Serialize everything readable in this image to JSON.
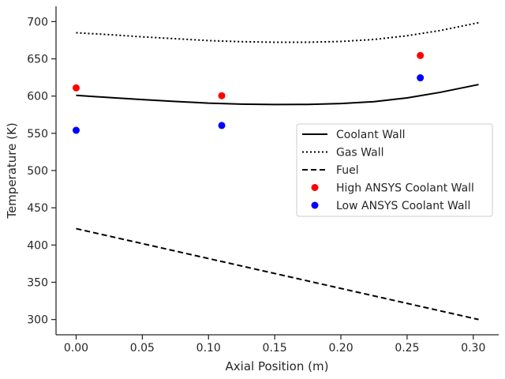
{
  "chart_data": {
    "type": "line",
    "title": "",
    "xlabel": "Axial Position (m)",
    "ylabel": "Temperature (K)",
    "xlim": [
      -0.0152,
      0.3192
    ],
    "ylim": [
      279.5,
      720.5
    ],
    "xticks": [
      0.0,
      0.05,
      0.1,
      0.15,
      0.2,
      0.25,
      0.3
    ],
    "xtick_labels": [
      "0.00",
      "0.05",
      "0.10",
      "0.15",
      "0.20",
      "0.25",
      "0.30"
    ],
    "yticks": [
      300,
      350,
      400,
      450,
      500,
      550,
      600,
      650,
      700
    ],
    "ytick_labels": [
      "300",
      "350",
      "400",
      "450",
      "500",
      "550",
      "600",
      "650",
      "700"
    ],
    "grid": false,
    "legend_position": "center-right",
    "series": [
      {
        "name": "Coolant Wall",
        "kind": "line",
        "style": "solid",
        "color": "#000000",
        "x": [
          0.0,
          0.025,
          0.05,
          0.075,
          0.1,
          0.125,
          0.15,
          0.175,
          0.2,
          0.225,
          0.25,
          0.275,
          0.304
        ],
        "y": [
          601.0,
          598.0,
          595.3,
          592.8,
          590.5,
          589.2,
          588.7,
          588.8,
          590.0,
          592.5,
          597.5,
          605.0,
          615.5
        ]
      },
      {
        "name": "Gas Wall",
        "kind": "line",
        "style": "dotted",
        "color": "#000000",
        "x": [
          0.0,
          0.025,
          0.05,
          0.075,
          0.1,
          0.125,
          0.15,
          0.175,
          0.2,
          0.225,
          0.25,
          0.275,
          0.304
        ],
        "y": [
          685.0,
          682.5,
          679.5,
          677.0,
          674.5,
          673.0,
          672.3,
          672.3,
          673.3,
          676.0,
          681.0,
          688.0,
          698.5
        ]
      },
      {
        "name": "Fuel",
        "kind": "line",
        "style": "dashed",
        "color": "#000000",
        "x": [
          0.0,
          0.304
        ],
        "y": [
          422.0,
          300.0
        ]
      },
      {
        "name": "High ANSYS Coolant Wall",
        "kind": "scatter",
        "color": "#ff0000",
        "x": [
          0.0,
          0.11,
          0.26
        ],
        "y": [
          611.0,
          600.5,
          654.5
        ]
      },
      {
        "name": "Low ANSYS Coolant Wall",
        "kind": "scatter",
        "color": "#0000ff",
        "x": [
          0.0,
          0.11,
          0.26
        ],
        "y": [
          554.0,
          560.5,
          624.5
        ]
      }
    ]
  }
}
